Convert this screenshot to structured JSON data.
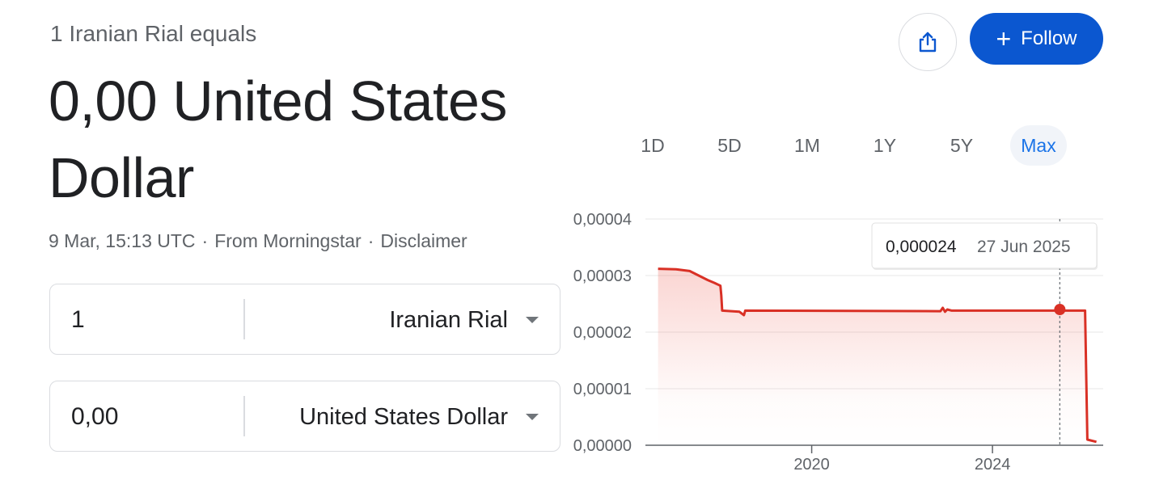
{
  "header": {
    "equals_text": "1 Iranian Rial equals",
    "value_line1": "0,00 United States",
    "value_line2": "Dollar",
    "timestamp": "9 Mar, 15:13 UTC",
    "source": "From Morningstar",
    "disclaimer": "Disclaimer",
    "separator": "·"
  },
  "actions": {
    "share_icon": "share-icon",
    "follow_label": "Follow",
    "follow_plus": "+",
    "accent_color": "#0b57d0"
  },
  "converter": {
    "from_amount": "1",
    "from_currency": "Iranian Rial",
    "to_amount": "0,00",
    "to_currency": "United States Dollar"
  },
  "ranges": {
    "items": [
      "1D",
      "5D",
      "1M",
      "1Y",
      "5Y",
      "Max"
    ],
    "selected": "Max"
  },
  "tooltip": {
    "value": "0,000024",
    "date": "27 Jun 2025"
  },
  "chart_data": {
    "type": "area",
    "series": [
      {
        "color": "#d93025",
        "points": [
          {
            "x": 2016.6,
            "y": 3.12e-05
          },
          {
            "x": 2017.0,
            "y": 3.11e-05
          },
          {
            "x": 2017.3,
            "y": 3.08e-05
          },
          {
            "x": 2017.5,
            "y": 3e-05
          },
          {
            "x": 2017.7,
            "y": 2.92e-05
          },
          {
            "x": 2017.85,
            "y": 2.87e-05
          },
          {
            "x": 2017.98,
            "y": 2.82e-05
          },
          {
            "x": 2018.0,
            "y": 2.65e-05
          },
          {
            "x": 2018.02,
            "y": 2.38e-05
          },
          {
            "x": 2018.4,
            "y": 2.36e-05
          },
          {
            "x": 2018.5,
            "y": 2.3e-05
          },
          {
            "x": 2018.53,
            "y": 2.38e-05
          },
          {
            "x": 2022.85,
            "y": 2.37e-05
          },
          {
            "x": 2022.9,
            "y": 2.43e-05
          },
          {
            "x": 2022.95,
            "y": 2.36e-05
          },
          {
            "x": 2023.0,
            "y": 2.4e-05
          },
          {
            "x": 2023.1,
            "y": 2.38e-05
          },
          {
            "x": 2025.49,
            "y": 2.38e-05
          },
          {
            "x": 2026.05,
            "y": 2.38e-05
          },
          {
            "x": 2026.1,
            "y": 1e-06
          },
          {
            "x": 2026.3,
            "y": 6e-07
          }
        ]
      }
    ],
    "highlight": {
      "x": 2025.49,
      "y": 2.4e-05
    },
    "xlim": [
      2016.5,
      2026.45
    ],
    "ylim": [
      0,
      4e-05
    ],
    "yticks": [
      "0,00000",
      "0,00001",
      "0,00002",
      "0,00003",
      "0,00004"
    ],
    "xticks": [
      {
        "x": 2020,
        "label": "2020"
      },
      {
        "x": 2024,
        "label": "2024"
      }
    ],
    "grid": true
  }
}
